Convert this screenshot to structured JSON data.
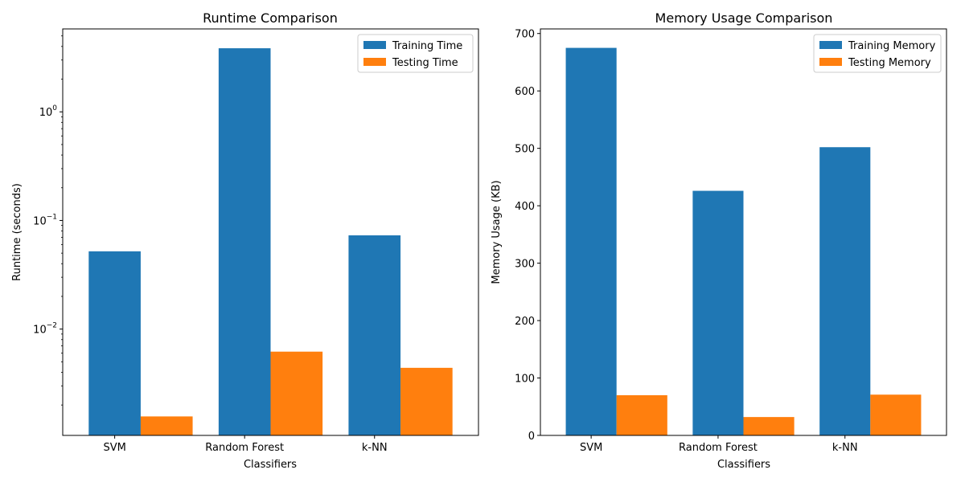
{
  "chart_data": [
    {
      "type": "bar",
      "title": "Runtime Comparison",
      "xlabel": "Classifiers",
      "ylabel": "Runtime (seconds)",
      "yscale": "log",
      "ylim": [
        0.00105,
        5.8
      ],
      "yticks": [
        {
          "value": 0.01,
          "base": "10",
          "exp": "−2"
        },
        {
          "value": 0.1,
          "base": "10",
          "exp": "−1"
        },
        {
          "value": 1,
          "base": "10",
          "exp": "0"
        }
      ],
      "categories": [
        "SVM",
        "Random Forest",
        "k-NN"
      ],
      "series": [
        {
          "name": "Training Time",
          "color": "#1f77b4",
          "values": [
            0.052,
            3.85,
            0.073
          ]
        },
        {
          "name": "Testing Time",
          "color": "#ff7f0e",
          "values": [
            0.00157,
            0.0062,
            0.0044
          ]
        }
      ],
      "legend": "top-right",
      "grid": false
    },
    {
      "type": "bar",
      "title": "Memory Usage Comparison",
      "xlabel": "Classifiers",
      "ylabel": "Memory Usage (KB)",
      "yscale": "linear",
      "ylim": [
        0,
        708
      ],
      "yticks": [
        {
          "value": 0,
          "label": "0"
        },
        {
          "value": 100,
          "label": "100"
        },
        {
          "value": 200,
          "label": "200"
        },
        {
          "value": 300,
          "label": "300"
        },
        {
          "value": 400,
          "label": "400"
        },
        {
          "value": 500,
          "label": "500"
        },
        {
          "value": 600,
          "label": "600"
        },
        {
          "value": 700,
          "label": "700"
        }
      ],
      "categories": [
        "SVM",
        "Random Forest",
        "k-NN"
      ],
      "series": [
        {
          "name": "Training Memory",
          "color": "#1f77b4",
          "values": [
            675,
            426,
            502
          ]
        },
        {
          "name": "Testing Memory",
          "color": "#ff7f0e",
          "values": [
            70,
            32,
            71
          ]
        }
      ],
      "legend": "top-right",
      "grid": false
    }
  ]
}
